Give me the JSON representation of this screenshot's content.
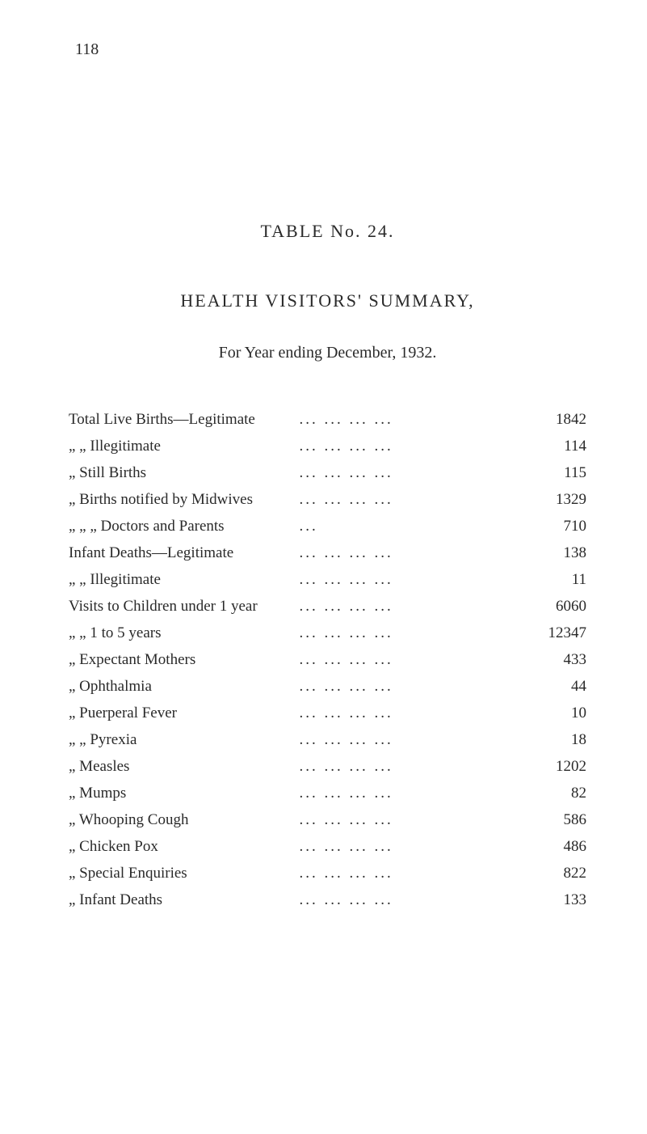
{
  "page_number": "118",
  "table_heading": "TABLE No. 24.",
  "main_heading": "HEALTH VISITORS' SUMMARY,",
  "sub_heading": "For Year ending December, 1932.",
  "rows": [
    {
      "label": "Total Live Births—Legitimate",
      "value": "1842"
    },
    {
      "label": "„        „           Illegitimate",
      "value": "114"
    },
    {
      "label": "„    Still Births",
      "value": "115"
    },
    {
      "label": "„    Births notified by Midwives",
      "value": "1329"
    },
    {
      "label": "„        „        „       Doctors and Parents",
      "value": "710"
    },
    {
      "label": "Infant Deaths—Legitimate",
      "value": "138"
    },
    {
      "label": "„        „       Illegitimate",
      "value": "11"
    },
    {
      "label": "Visits to Children under 1 year",
      "value": "6060"
    },
    {
      "label": "„            „       1 to 5 years",
      "value": "12347"
    },
    {
      "label": "„       Expectant Mothers",
      "value": "433"
    },
    {
      "label": "„       Ophthalmia",
      "value": "44"
    },
    {
      "label": "„       Puerperal Fever",
      "value": "10"
    },
    {
      "label": "„            „      Pyrexia",
      "value": "18"
    },
    {
      "label": "„       Measles",
      "value": "1202"
    },
    {
      "label": "„       Mumps",
      "value": "82"
    },
    {
      "label": "„       Whooping Cough",
      "value": "586"
    },
    {
      "label": "„       Chicken Pox",
      "value": "486"
    },
    {
      "label": "„       Special Enquiries",
      "value": "822"
    },
    {
      "label": "„       Infant Deaths",
      "value": "133"
    }
  ],
  "dot_leader": "... ... ... ..."
}
